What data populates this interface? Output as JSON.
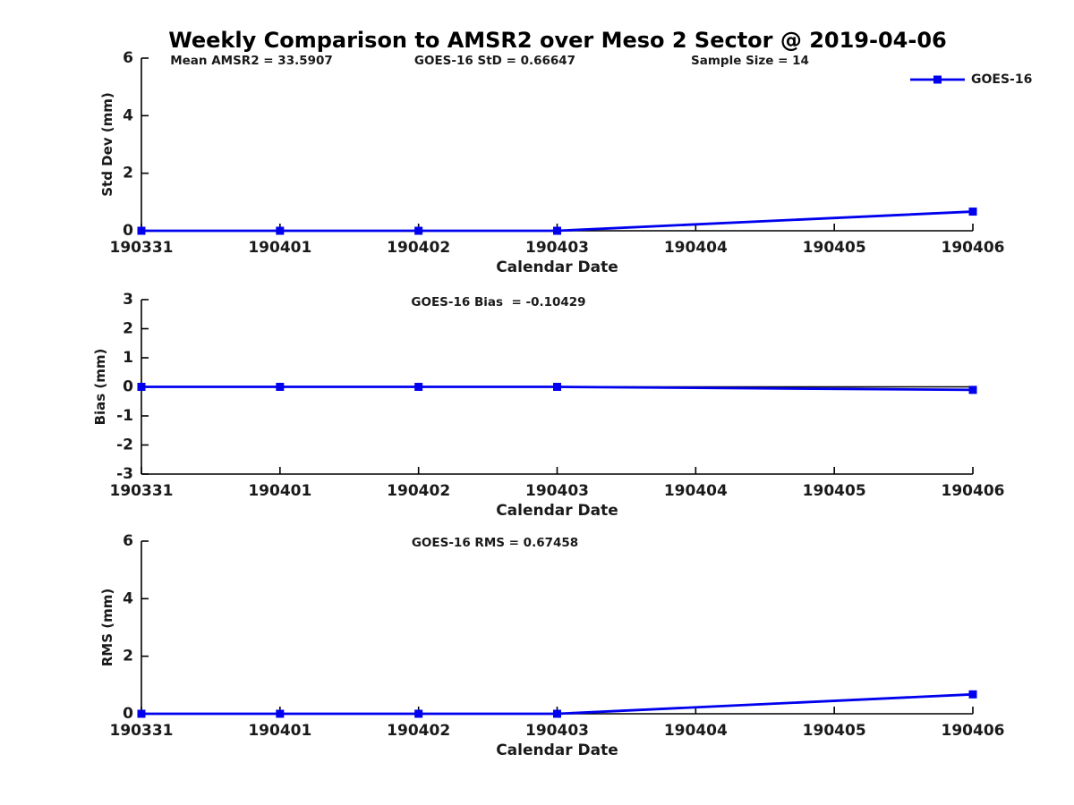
{
  "title": "Weekly Comparison to AMSR2 over Meso 2 Sector @ 2019-04-06",
  "legend": {
    "label": "GOES-16",
    "position": "top-right-outside"
  },
  "colors": {
    "series": "#0000ee",
    "axis": "#000000",
    "text": "#1a1a1a",
    "zero_line": "#000000",
    "background": "#ffffff"
  },
  "chart_data": [
    {
      "type": "line",
      "name": "std-dev-subplot",
      "title_annotations": [
        "Mean AMSR2 = 33.5907",
        "GOES-16 StD = 0.66647",
        "Sample Size = 14"
      ],
      "ylabel": "Std Dev (mm)",
      "xlabel": "Calendar Date",
      "ylim": [
        0,
        6
      ],
      "yticks": [
        0,
        2,
        4,
        6
      ],
      "grid": false,
      "x_categories": [
        "190331",
        "190401",
        "190402",
        "190403",
        "190404",
        "190405",
        "190406"
      ],
      "zero_line": false,
      "series": [
        {
          "name": "GOES-16",
          "x": [
            "190331",
            "190401",
            "190402",
            "190403",
            "190406"
          ],
          "values": [
            0,
            0,
            0,
            0,
            0.66647
          ]
        }
      ]
    },
    {
      "type": "line",
      "name": "bias-subplot",
      "title_annotations": [
        "GOES-16 Bias  = -0.10429"
      ],
      "ylabel": "Bias (mm)",
      "xlabel": "Calendar Date",
      "ylim": [
        -3,
        3
      ],
      "yticks": [
        -3,
        -2,
        -1,
        0,
        1,
        2,
        3
      ],
      "grid": false,
      "x_categories": [
        "190331",
        "190401",
        "190402",
        "190403",
        "190404",
        "190405",
        "190406"
      ],
      "zero_line": true,
      "series": [
        {
          "name": "GOES-16",
          "x": [
            "190331",
            "190401",
            "190402",
            "190403",
            "190406"
          ],
          "values": [
            0,
            0,
            0,
            0,
            -0.10429
          ]
        }
      ]
    },
    {
      "type": "line",
      "name": "rms-subplot",
      "title_annotations": [
        "GOES-16 RMS = 0.67458"
      ],
      "ylabel": "RMS (mm)",
      "xlabel": "Calendar Date",
      "ylim": [
        0,
        6
      ],
      "yticks": [
        0,
        2,
        4,
        6
      ],
      "grid": false,
      "x_categories": [
        "190331",
        "190401",
        "190402",
        "190403",
        "190404",
        "190405",
        "190406"
      ],
      "zero_line": false,
      "series": [
        {
          "name": "GOES-16",
          "x": [
            "190331",
            "190401",
            "190402",
            "190403",
            "190406"
          ],
          "values": [
            0,
            0,
            0,
            0,
            0.67458
          ]
        }
      ]
    }
  ]
}
